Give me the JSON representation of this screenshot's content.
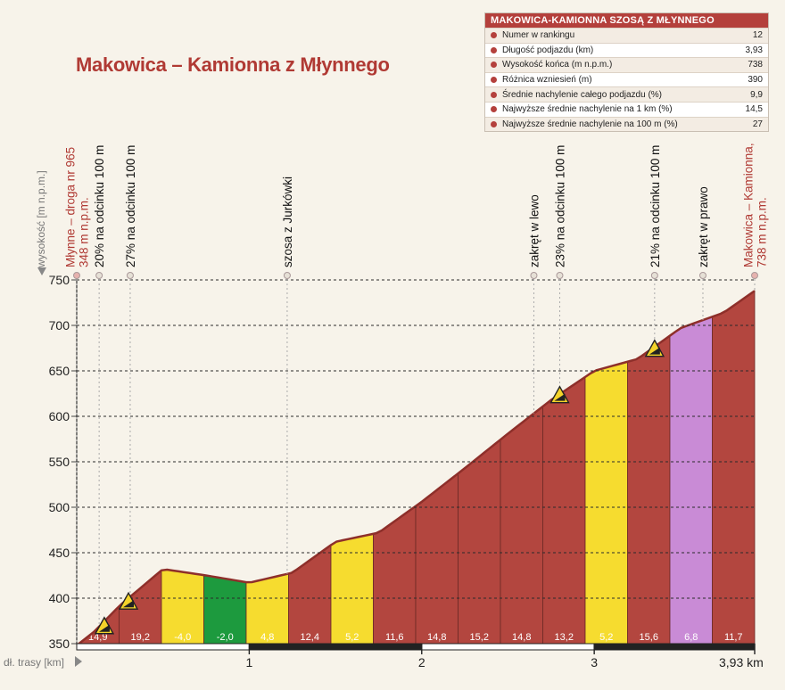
{
  "title": "Makowica – Kamionna z Młynnego",
  "stats_box": {
    "title": "MAKOWICA-KAMIONNA SZOSĄ Z MŁYNNEGO",
    "rows": [
      {
        "label": "Numer w rankingu",
        "value": "12"
      },
      {
        "label": "Długość podjazdu (km)",
        "value": "3,93"
      },
      {
        "label": "Wysokość końca (m n.p.m.)",
        "value": "738"
      },
      {
        "label": "Różnica wzniesień (m)",
        "value": "390"
      },
      {
        "label": "Średnie nachylenie całego podjazdu (%)",
        "value": "9,9"
      },
      {
        "label": "Najwyższe średnie nachylenie na 1 km (%)",
        "value": "14,5"
      },
      {
        "label": "Najwyższe średnie nachylenie na 100 m (%)",
        "value": "27"
      }
    ]
  },
  "chart_data": {
    "type": "area",
    "y_axis_label": "wysokość [m n.p.m.]",
    "x_axis_label": "dł. trasy [km]",
    "ylim": [
      350,
      750
    ],
    "xlim": [
      0,
      3.93
    ],
    "y_ticks": [
      350,
      400,
      450,
      500,
      550,
      600,
      650,
      700,
      750
    ],
    "x_ticks": [
      {
        "value": 1,
        "label": "1"
      },
      {
        "value": 2,
        "label": "2"
      },
      {
        "value": 3,
        "label": "3"
      },
      {
        "value": 3.93,
        "label": "3,93 km"
      }
    ],
    "grid": true,
    "colors": {
      "red": "#b3463f",
      "yellow": "#f6dc2f",
      "green": "#1d9a3e",
      "purple": "#c98bd6"
    },
    "profile": [
      {
        "x": 0.0,
        "y": 348
      },
      {
        "x": 0.1,
        "y": 363
      },
      {
        "x": 0.25,
        "y": 392
      },
      {
        "x": 0.5,
        "y": 432
      },
      {
        "x": 0.75,
        "y": 425
      },
      {
        "x": 1.0,
        "y": 417
      },
      {
        "x": 1.25,
        "y": 428
      },
      {
        "x": 1.5,
        "y": 462
      },
      {
        "x": 1.75,
        "y": 472
      },
      {
        "x": 2.0,
        "y": 506
      },
      {
        "x": 2.25,
        "y": 543
      },
      {
        "x": 2.5,
        "y": 581
      },
      {
        "x": 2.75,
        "y": 618
      },
      {
        "x": 3.0,
        "y": 650
      },
      {
        "x": 3.25,
        "y": 663
      },
      {
        "x": 3.5,
        "y": 697
      },
      {
        "x": 3.75,
        "y": 714
      },
      {
        "x": 3.93,
        "y": 738
      }
    ],
    "segments": [
      {
        "label": "14,9",
        "color": "red"
      },
      {
        "label": "19,2",
        "color": "red"
      },
      {
        "label": "-4,0",
        "color": "yellow"
      },
      {
        "label": "-2,0",
        "color": "green"
      },
      {
        "label": "4,8",
        "color": "yellow"
      },
      {
        "label": "12,4",
        "color": "red"
      },
      {
        "label": "5,2",
        "color": "yellow"
      },
      {
        "label": "11,6",
        "color": "red"
      },
      {
        "label": "14,8",
        "color": "red"
      },
      {
        "label": "15,2",
        "color": "red"
      },
      {
        "label": "14,8",
        "color": "red"
      },
      {
        "label": "13,2",
        "color": "red"
      },
      {
        "label": "5,2",
        "color": "yellow"
      },
      {
        "label": "15,6",
        "color": "red"
      },
      {
        "label": "6,8",
        "color": "purple"
      },
      {
        "label": "11,7",
        "color": "red"
      }
    ],
    "annotations": [
      {
        "x": 0.0,
        "lines": [
          "Młynne – droga nr 965",
          "348 m n.p.m."
        ],
        "color": "red"
      },
      {
        "x": 0.13,
        "lines": [
          "20% na odcinku 100 m"
        ],
        "color": "black"
      },
      {
        "x": 0.31,
        "lines": [
          "27% na odcinku 100 m"
        ],
        "color": "black"
      },
      {
        "x": 1.22,
        "lines": [
          "szosa z Jurkówki"
        ],
        "color": "black"
      },
      {
        "x": 2.65,
        "lines": [
          "zakręt w lewo"
        ],
        "color": "black"
      },
      {
        "x": 2.8,
        "lines": [
          "23% na odcinku 100 m"
        ],
        "color": "black"
      },
      {
        "x": 3.35,
        "lines": [
          "21% na odcinku 100 m"
        ],
        "color": "black"
      },
      {
        "x": 3.63,
        "lines": [
          "zakręt w prawo"
        ],
        "color": "black"
      },
      {
        "x": 3.93,
        "lines": [
          "Makowica – Kamionna,",
          "738 m n.p.m."
        ],
        "color": "red"
      }
    ],
    "warning_markers": [
      {
        "x": 0.16,
        "y": 363
      },
      {
        "x": 0.3,
        "y": 390
      },
      {
        "x": 2.8,
        "y": 617
      },
      {
        "x": 3.35,
        "y": 668
      }
    ]
  }
}
